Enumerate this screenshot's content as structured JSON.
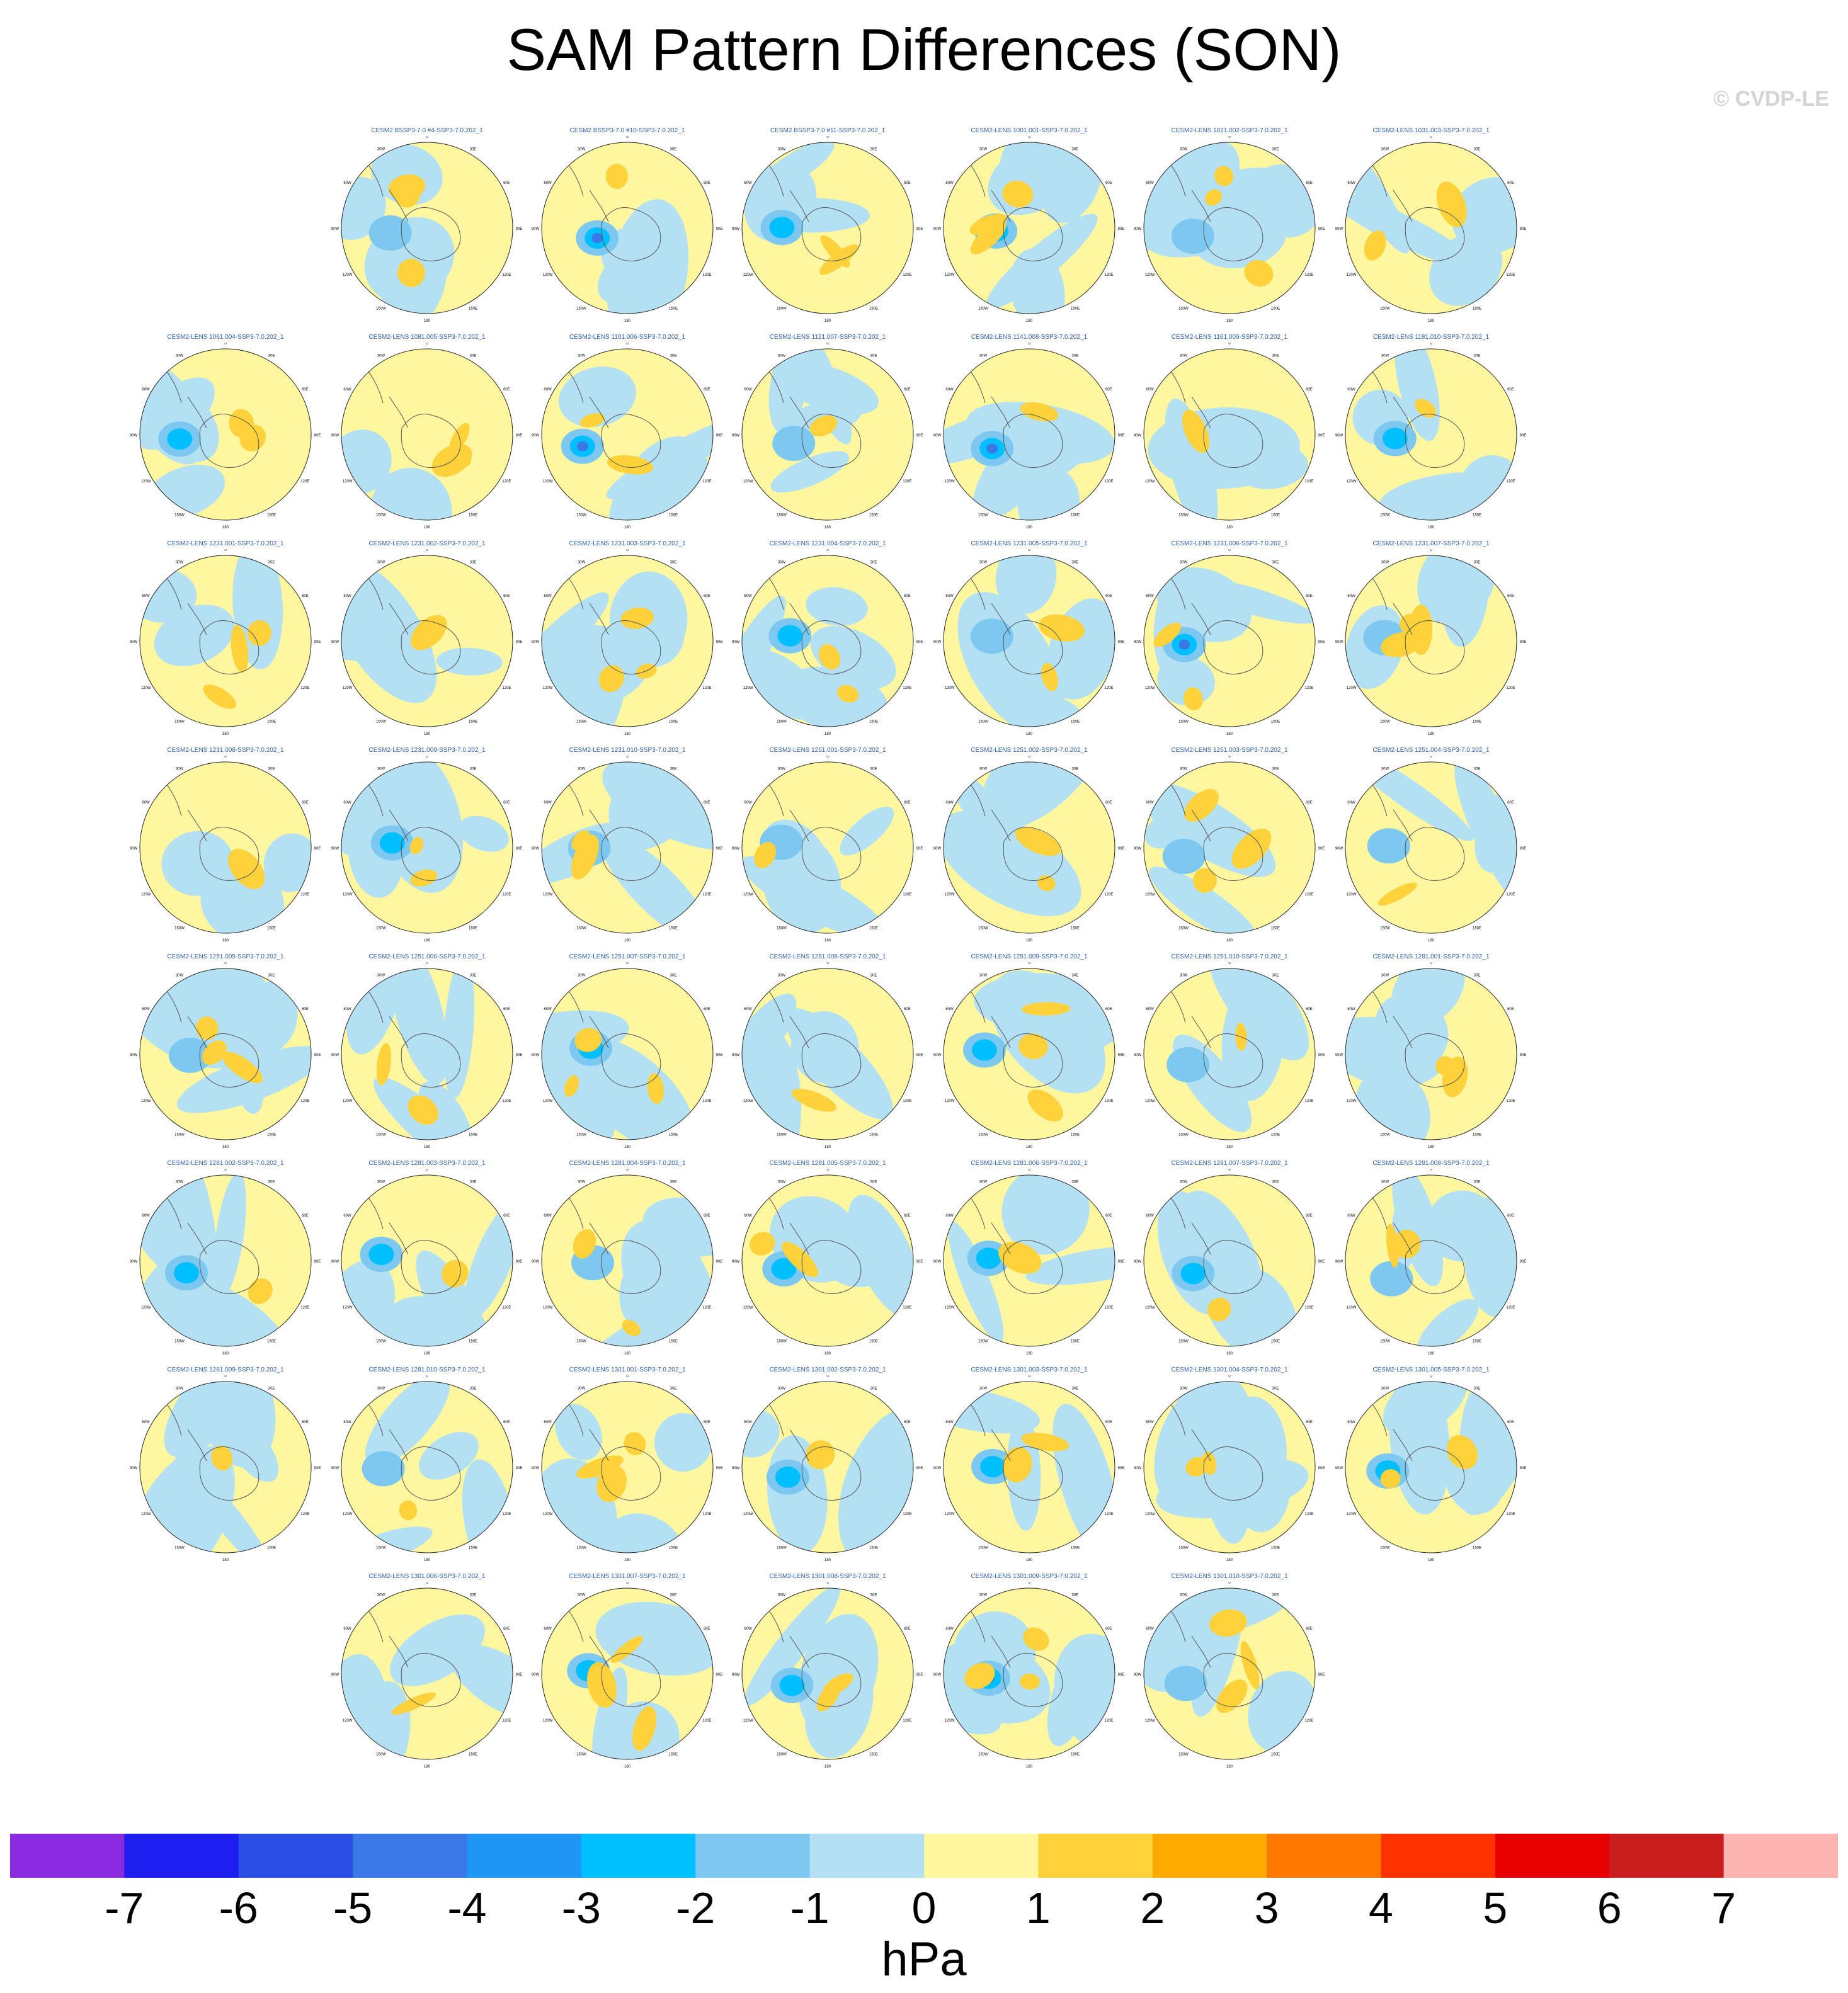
{
  "title": "SAM Pattern Differences (SON)",
  "watermark": "© CVDP-LE",
  "units": "hPa",
  "lon_labels": [
    "0",
    "30E",
    "60E",
    "90E",
    "120E",
    "150E",
    "180",
    "150W",
    "120W",
    "90W",
    "60W",
    "30W"
  ],
  "colorbar": {
    "colors": [
      "#8a2be2",
      "#1e1ef0",
      "#2b4ee6",
      "#3a78e8",
      "#1e96f5",
      "#00bfff",
      "#7cc8f0",
      "#b4e0f4",
      "#fff6a0",
      "#ffd23c",
      "#ffaa00",
      "#ff7800",
      "#ff3200",
      "#e60000",
      "#c81e1e",
      "#ffb4b4"
    ],
    "labels": [
      "-7",
      "-6",
      "-5",
      "-4",
      "-3",
      "-2",
      "-1",
      "0",
      "1",
      "2",
      "3",
      "4",
      "5",
      "6",
      "7"
    ]
  },
  "rows": [
    [
      null,
      "CESM2 BSSP3-7.0 #4-SSP3-7.0.202_1",
      "CESM2 BSSP3-7.0 #10-SSP3-7.0.202_1",
      "CESM2 BSSP3-7.0 #11-SSP3-7.0.202_1",
      "CESM2-LENS 1001.001-SSP3-7.0.202_1",
      "CESM2-LENS 1021.002-SSP3-7.0.202_1",
      "CESM2-LENS 1031.003-SSP3-7.0.202_1"
    ],
    [
      "CESM2-LENS 1061.004-SSP3-7.0.202_1",
      "CESM2-LENS 1081.005-SSP3-7.0.202_1",
      "CESM2-LENS 1101.006-SSP3-7.0.202_1",
      "CESM2-LENS 1121.007-SSP3-7.0.202_1",
      "CESM2-LENS 1141.008-SSP3-7.0.202_1",
      "CESM2-LENS 1161.009-SSP3-7.0.202_1",
      "CESM2-LENS 1181.010-SSP3-7.0.202_1"
    ],
    [
      "CESM2-LENS 1231.001-SSP3-7.0.202_1",
      "CESM2-LENS 1231.002-SSP3-7.0.202_1",
      "CESM2-LENS 1231.003-SSP3-7.0.202_1",
      "CESM2-LENS 1231.004-SSP3-7.0.202_1",
      "CESM2-LENS 1231.005-SSP3-7.0.202_1",
      "CESM2-LENS 1231.006-SSP3-7.0.202_1",
      "CESM2-LENS 1231.007-SSP3-7.0.202_1"
    ],
    [
      "CESM2-LENS 1231.008-SSP3-7.0.202_1",
      "CESM2-LENS 1231.009-SSP3-7.0.202_1",
      "CESM2-LENS 1231.010-SSP3-7.0.202_1",
      "CESM2-LENS 1251.001-SSP3-7.0.202_1",
      "CESM2-LENS 1251.002-SSP3-7.0.202_1",
      "CESM2-LENS 1251.003-SSP3-7.0.202_1",
      "CESM2-LENS 1251.004-SSP3-7.0.202_1"
    ],
    [
      "CESM2-LENS 1251.005-SSP3-7.0.202_1",
      "CESM2-LENS 1251.006-SSP3-7.0.202_1",
      "CESM2-LENS 1251.007-SSP3-7.0.202_1",
      "CESM2-LENS 1251.008-SSP3-7.0.202_1",
      "CESM2-LENS 1251.009-SSP3-7.0.202_1",
      "CESM2-LENS 1251.010-SSP3-7.0.202_1",
      "CESM2-LENS 1281.001-SSP3-7.0.202_1"
    ],
    [
      "CESM2-LENS 1281.002-SSP3-7.0.202_1",
      "CESM2-LENS 1281.003-SSP3-7.0.202_1",
      "CESM2-LENS 1281.004-SSP3-7.0.202_1",
      "CESM2-LENS 1281.005-SSP3-7.0.202_1",
      "CESM2-LENS 1281.006-SSP3-7.0.202_1",
      "CESM2-LENS 1281.007-SSP3-7.0.202_1",
      "CESM2-LENS 1281.008-SSP3-7.0.202_1"
    ],
    [
      "CESM2-LENS 1281.009-SSP3-7.0.202_1",
      "CESM2-LENS 1281.010-SSP3-7.0.202_1",
      "CESM2-LENS 1301.001-SSP3-7.0.202_1",
      "CESM2-LENS 1301.002-SSP3-7.0.202_1",
      "CESM2-LENS 1301.003-SSP3-7.0.202_1",
      "CESM2-LENS 1301.004-SSP3-7.0.202_1",
      "CESM2-LENS 1301.005-SSP3-7.0.202_1"
    ],
    [
      null,
      "CESM2-LENS 1301.006-SSP3-7.0.202_1",
      "CESM2-LENS 1301.007-SSP3-7.0.202_1",
      "CESM2-LENS 1301.008-SSP3-7.0.202_1",
      "CESM2-LENS 1301.009-SSP3-7.0.202_1",
      "CESM2-LENS 1301.010-SSP3-7.0.202_1",
      null
    ]
  ]
}
